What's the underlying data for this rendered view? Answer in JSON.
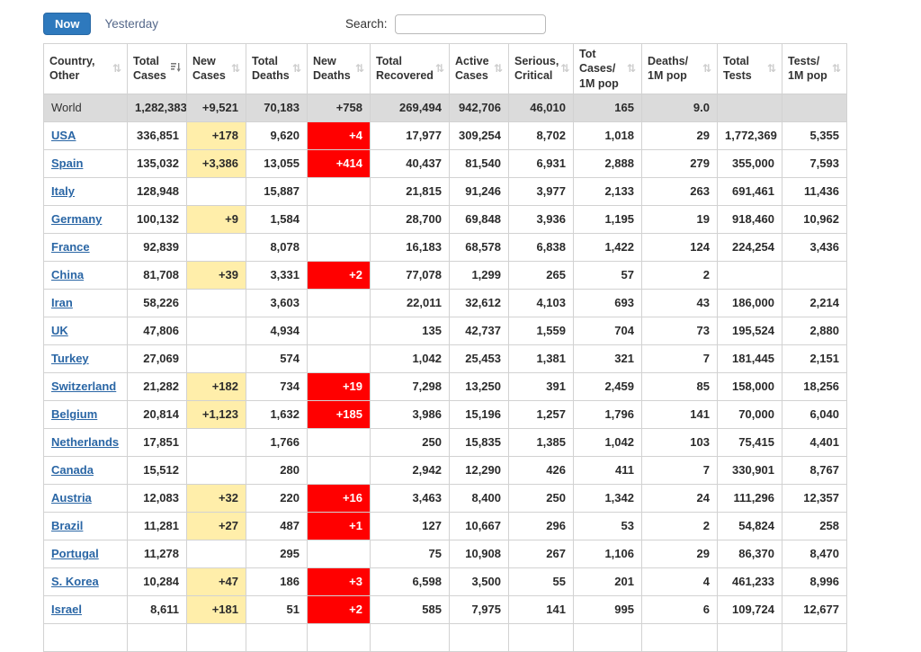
{
  "toolbar": {
    "now_label": "Now",
    "yesterday_label": "Yesterday",
    "search_label": "Search:",
    "search_value": ""
  },
  "colors": {
    "accent_blue": "#2e79bd",
    "link_blue": "#2a66a5",
    "new_cases_yellow": "#FFEEAA",
    "new_deaths_red": "#FF0000",
    "world_row_grey": "#dbdbdb",
    "border_grey": "#d2d2d2"
  },
  "icons": {
    "sort_unsorted_glyph": "⇅",
    "sort_active_name": "sort-amount-desc-icon"
  },
  "table": {
    "columns": [
      {
        "key": "country",
        "label": "Country,\nOther",
        "sorted": false
      },
      {
        "key": "total_cases",
        "label": "Total\nCases",
        "sorted": true
      },
      {
        "key": "new_cases",
        "label": "New\nCases",
        "sorted": false
      },
      {
        "key": "total_deaths",
        "label": "Total\nDeaths",
        "sorted": false
      },
      {
        "key": "new_deaths",
        "label": "New\nDeaths",
        "sorted": false
      },
      {
        "key": "total_recovered",
        "label": "Total\nRecovered",
        "sorted": false
      },
      {
        "key": "active_cases",
        "label": "Active\nCases",
        "sorted": false
      },
      {
        "key": "serious_critical",
        "label": "Serious,\nCritical",
        "sorted": false
      },
      {
        "key": "tot_cases_1m",
        "label": "Tot Cases/\n1M pop",
        "sorted": false
      },
      {
        "key": "deaths_1m",
        "label": "Deaths/\n1M pop",
        "sorted": false
      },
      {
        "key": "total_tests",
        "label": "Total\nTests",
        "sorted": false
      },
      {
        "key": "tests_1m",
        "label": "Tests/\n1M pop",
        "sorted": false
      }
    ],
    "world_row": [
      "World",
      "1,282,383",
      "+9,521",
      "70,183",
      "+758",
      "269,494",
      "942,706",
      "46,010",
      "165",
      "9.0",
      "",
      ""
    ],
    "rows": [
      [
        "USA",
        "336,851",
        "+178",
        "9,620",
        "+4",
        "17,977",
        "309,254",
        "8,702",
        "1,018",
        "29",
        "1,772,369",
        "5,355"
      ],
      [
        "Spain",
        "135,032",
        "+3,386",
        "13,055",
        "+414",
        "40,437",
        "81,540",
        "6,931",
        "2,888",
        "279",
        "355,000",
        "7,593"
      ],
      [
        "Italy",
        "128,948",
        "",
        "15,887",
        "",
        "21,815",
        "91,246",
        "3,977",
        "2,133",
        "263",
        "691,461",
        "11,436"
      ],
      [
        "Germany",
        "100,132",
        "+9",
        "1,584",
        "",
        "28,700",
        "69,848",
        "3,936",
        "1,195",
        "19",
        "918,460",
        "10,962"
      ],
      [
        "France",
        "92,839",
        "",
        "8,078",
        "",
        "16,183",
        "68,578",
        "6,838",
        "1,422",
        "124",
        "224,254",
        "3,436"
      ],
      [
        "China",
        "81,708",
        "+39",
        "3,331",
        "+2",
        "77,078",
        "1,299",
        "265",
        "57",
        "2",
        "",
        ""
      ],
      [
        "Iran",
        "58,226",
        "",
        "3,603",
        "",
        "22,011",
        "32,612",
        "4,103",
        "693",
        "43",
        "186,000",
        "2,214"
      ],
      [
        "UK",
        "47,806",
        "",
        "4,934",
        "",
        "135",
        "42,737",
        "1,559",
        "704",
        "73",
        "195,524",
        "2,880"
      ],
      [
        "Turkey",
        "27,069",
        "",
        "574",
        "",
        "1,042",
        "25,453",
        "1,381",
        "321",
        "7",
        "181,445",
        "2,151"
      ],
      [
        "Switzerland",
        "21,282",
        "+182",
        "734",
        "+19",
        "7,298",
        "13,250",
        "391",
        "2,459",
        "85",
        "158,000",
        "18,256"
      ],
      [
        "Belgium",
        "20,814",
        "+1,123",
        "1,632",
        "+185",
        "3,986",
        "15,196",
        "1,257",
        "1,796",
        "141",
        "70,000",
        "6,040"
      ],
      [
        "Netherlands",
        "17,851",
        "",
        "1,766",
        "",
        "250",
        "15,835",
        "1,385",
        "1,042",
        "103",
        "75,415",
        "4,401"
      ],
      [
        "Canada",
        "15,512",
        "",
        "280",
        "",
        "2,942",
        "12,290",
        "426",
        "411",
        "7",
        "330,901",
        "8,767"
      ],
      [
        "Austria",
        "12,083",
        "+32",
        "220",
        "+16",
        "3,463",
        "8,400",
        "250",
        "1,342",
        "24",
        "111,296",
        "12,357"
      ],
      [
        "Brazil",
        "11,281",
        "+27",
        "487",
        "+1",
        "127",
        "10,667",
        "296",
        "53",
        "2",
        "54,824",
        "258"
      ],
      [
        "Portugal",
        "11,278",
        "",
        "295",
        "",
        "75",
        "10,908",
        "267",
        "1,106",
        "29",
        "86,370",
        "8,470"
      ],
      [
        "S. Korea",
        "10,284",
        "+47",
        "186",
        "+3",
        "6,598",
        "3,500",
        "55",
        "201",
        "4",
        "461,233",
        "8,996"
      ],
      [
        "Israel",
        "8,611",
        "+181",
        "51",
        "+2",
        "585",
        "7,975",
        "141",
        "995",
        "6",
        "109,724",
        "12,677"
      ]
    ]
  }
}
